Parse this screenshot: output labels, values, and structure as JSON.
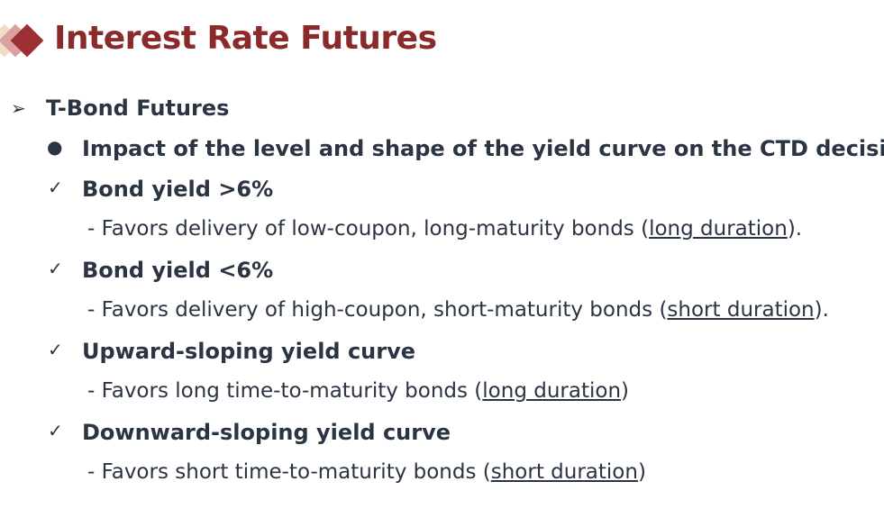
{
  "title": "Interest Rate Futures",
  "colors": {
    "title": "#8B2A2A",
    "text": "#2A3442"
  },
  "heading": {
    "icon": "arrow-bullet-icon",
    "text": "T-Bond Futures"
  },
  "main_point": "Impact of the level and shape of the yield curve on the CTD decision",
  "items": [
    {
      "label": "Bond yield >6%",
      "detail_pre": "- Favors delivery of low-coupon, long-maturity bonds (",
      "detail_link": "long duration",
      "detail_post": ")."
    },
    {
      "label": "Bond yield <6%",
      "detail_pre": "- Favors delivery of high-coupon, short-maturity bonds (",
      "detail_link": "short duration",
      "detail_post": ")."
    },
    {
      "label": "Upward-sloping yield curve",
      "detail_pre": "- Favors long time-to-maturity bonds (",
      "detail_link": "long duration",
      "detail_post": ")"
    },
    {
      "label": "Downward-sloping yield curve",
      "detail_pre": "- Favors short time-to-maturity bonds (",
      "detail_link": "short duration",
      "detail_post": ")"
    }
  ]
}
